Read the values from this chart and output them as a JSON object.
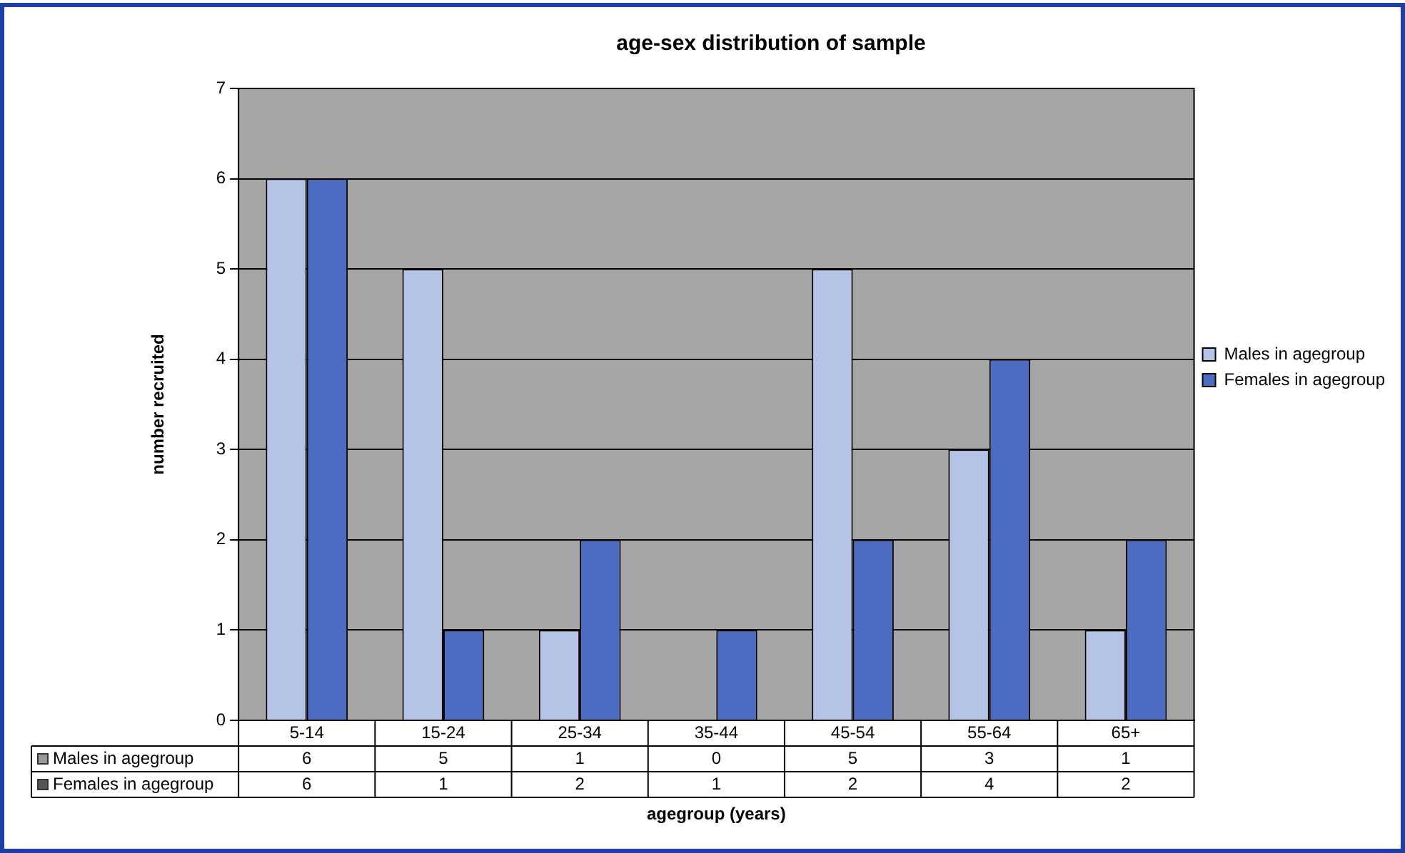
{
  "chart_data": {
    "type": "bar",
    "title": "age-sex distribution of sample",
    "xlabel": "agegroup (years)",
    "ylabel": "number recruited",
    "categories": [
      "5-14",
      "15-24",
      "25-34",
      "35-44",
      "45-54",
      "55-64",
      "65+"
    ],
    "series": [
      {
        "name": "Males in agegroup",
        "color": "#b4c3e6",
        "values": [
          6,
          5,
          1,
          0,
          5,
          3,
          1
        ]
      },
      {
        "name": "Females in agegroup",
        "color": "#4b6cc0",
        "values": [
          6,
          1,
          2,
          1,
          2,
          4,
          2
        ]
      }
    ],
    "ylim": [
      0,
      7
    ],
    "yticks": [
      0,
      1,
      2,
      3,
      4,
      5,
      6,
      7
    ],
    "grid": "y",
    "legend": "right",
    "data_labels": true
  }
}
